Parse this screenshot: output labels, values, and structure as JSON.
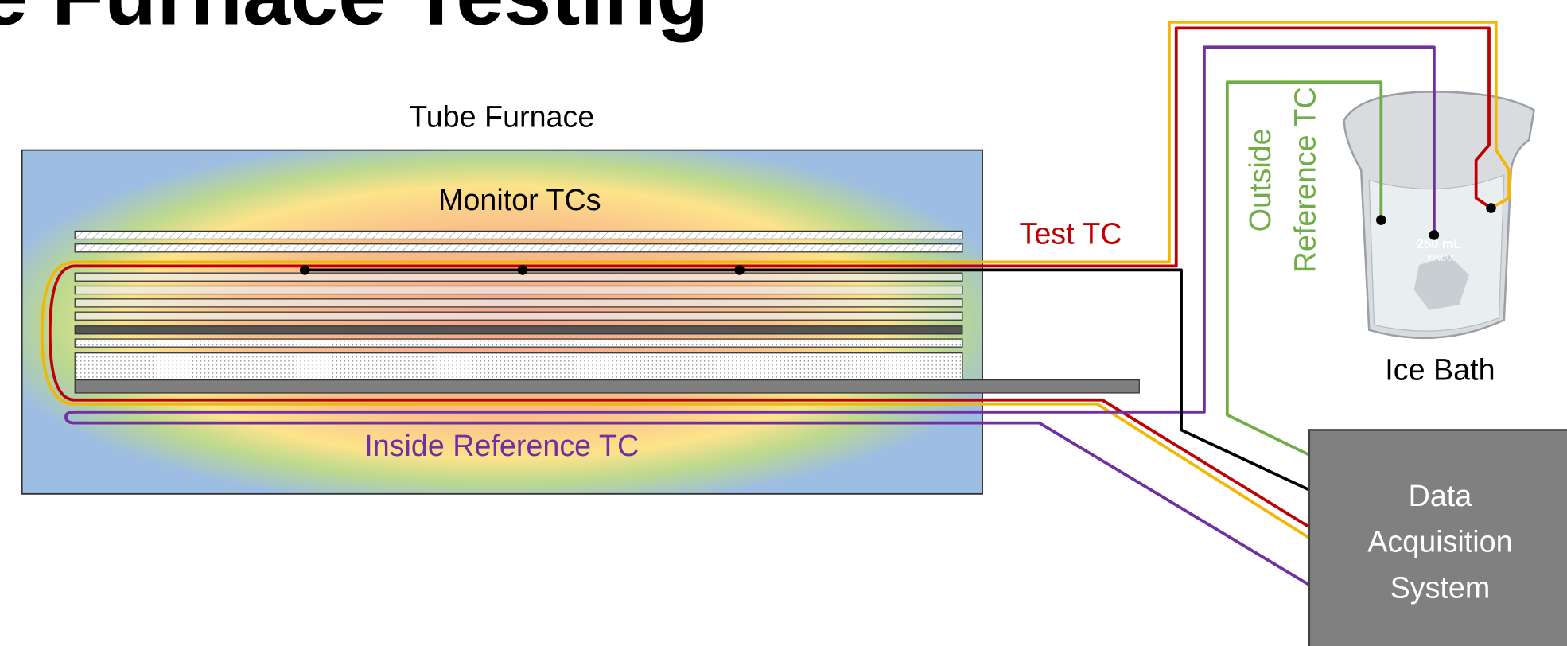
{
  "header": {
    "title": "e Furnace Testing"
  },
  "labels": {
    "tube_furnace": "Tube Furnace",
    "monitor_tcs": "Monitor TCs",
    "test_tc": "Test TC",
    "outside_reference_tc": [
      "Outside",
      "Reference TC"
    ],
    "ice_bath": "Ice Bath",
    "inside_reference_tc": "Inside Reference TC",
    "daq": [
      "Data",
      "Acquisition",
      "System"
    ],
    "beaker": [
      "250 mL",
      "KIMAX"
    ]
  }
}
